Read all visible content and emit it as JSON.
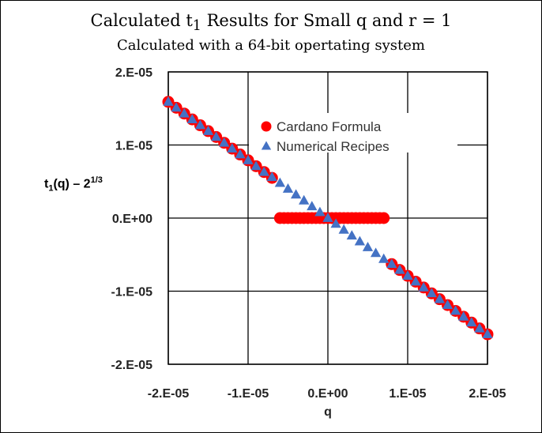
{
  "chart_data": {
    "type": "scatter",
    "title_main": "Calculated t",
    "title_sub_index": "1",
    "title_rest": " Results for Small q and r = 1",
    "subtitle": "Calculated with a 64-bit opertating system",
    "xlabel": "q",
    "ylabel_base": "t",
    "ylabel_index": "1",
    "ylabel_mid": "(q) – 2",
    "ylabel_exp": "1/3",
    "xlim": [
      -2e-05,
      2e-05
    ],
    "ylim": [
      -2e-05,
      2e-05
    ],
    "x_ticks": [
      -2e-05,
      -1e-05,
      0,
      1e-05,
      2e-05
    ],
    "x_tick_labels": [
      "-2.E-05",
      "-1.E-05",
      "0.E+00",
      "1.E-05",
      "2.E-05"
    ],
    "y_ticks": [
      2e-05,
      1e-05,
      0,
      -1e-05,
      -2e-05
    ],
    "y_tick_labels": [
      "2.E-05",
      "1.E-05",
      "0.E+00",
      "-1.E-05",
      "-2.E-05"
    ],
    "grid": true,
    "legend_position": "top-right",
    "series": [
      {
        "name": "Cardano Formula",
        "marker": "circle",
        "color": "#ff0000",
        "x": [
          -2e-05,
          -1.9e-05,
          -1.8e-05,
          -1.7e-05,
          -1.6e-05,
          -1.5e-05,
          -1.4e-05,
          -1.3e-05,
          -1.2e-05,
          -1.1e-05,
          -1e-05,
          -9e-06,
          -8e-06,
          -7e-06,
          -6e-06,
          -5.5e-06,
          -5e-06,
          -4.5e-06,
          -4e-06,
          -3.5e-06,
          -3e-06,
          -2.5e-06,
          -2e-06,
          -1.5e-06,
          -1e-06,
          -5e-07,
          0.0,
          5e-07,
          1e-06,
          1.5e-06,
          2e-06,
          2.5e-06,
          3e-06,
          3.5e-06,
          4e-06,
          4.5e-06,
          5e-06,
          5.5e-06,
          6e-06,
          6.5e-06,
          7e-06,
          8e-06,
          9e-06,
          1e-05,
          1.1e-05,
          1.2e-05,
          1.3e-05,
          1.4e-05,
          1.5e-05,
          1.6e-05,
          1.7e-05,
          1.8e-05,
          1.9e-05,
          2e-05
        ],
        "y": [
          1.59e-05,
          1.51e-05,
          1.43e-05,
          1.35e-05,
          1.27e-05,
          1.19e-05,
          1.11e-05,
          1.03e-05,
          9.5e-06,
          8.7e-06,
          7.9e-06,
          7.1e-06,
          6.3e-06,
          5.5e-06,
          0.0,
          0.0,
          0.0,
          0.0,
          0.0,
          0.0,
          0.0,
          0.0,
          0.0,
          0.0,
          0.0,
          0.0,
          0.0,
          0.0,
          0.0,
          0.0,
          0.0,
          0.0,
          0.0,
          0.0,
          0.0,
          0.0,
          0.0,
          0.0,
          0.0,
          0.0,
          0.0,
          -6.3e-06,
          -7.1e-06,
          -7.9e-06,
          -8.7e-06,
          -9.5e-06,
          -1.03e-05,
          -1.11e-05,
          -1.19e-05,
          -1.27e-05,
          -1.35e-05,
          -1.43e-05,
          -1.51e-05,
          -1.59e-05
        ]
      },
      {
        "name": "Numerical Recipes",
        "marker": "triangle",
        "color": "#4472c4",
        "x": [
          -2e-05,
          -1.9e-05,
          -1.8e-05,
          -1.7e-05,
          -1.6e-05,
          -1.5e-05,
          -1.4e-05,
          -1.3e-05,
          -1.2e-05,
          -1.1e-05,
          -1e-05,
          -9e-06,
          -8e-06,
          -7e-06,
          -6e-06,
          -5e-06,
          -4e-06,
          -3e-06,
          -2e-06,
          -1e-06,
          0.0,
          1e-06,
          2e-06,
          3e-06,
          4e-06,
          5e-06,
          6e-06,
          7e-06,
          8e-06,
          9e-06,
          1e-05,
          1.1e-05,
          1.2e-05,
          1.3e-05,
          1.4e-05,
          1.5e-05,
          1.6e-05,
          1.7e-05,
          1.8e-05,
          1.9e-05,
          2e-05
        ],
        "y": [
          1.59e-05,
          1.51e-05,
          1.43e-05,
          1.35e-05,
          1.27e-05,
          1.19e-05,
          1.11e-05,
          1.03e-05,
          9.5e-06,
          8.7e-06,
          7.9e-06,
          7.1e-06,
          6.3e-06,
          5.6e-06,
          4.8e-06,
          4e-06,
          3.2e-06,
          2.4e-06,
          1.6e-06,
          8e-07,
          0.0,
          -8e-07,
          -1.6e-06,
          -2.4e-06,
          -3.2e-06,
          -4e-06,
          -4.8e-06,
          -5.6e-06,
          -6.3e-06,
          -7.1e-06,
          -7.9e-06,
          -8.7e-06,
          -9.5e-06,
          -1.03e-05,
          -1.11e-05,
          -1.19e-05,
          -1.27e-05,
          -1.35e-05,
          -1.43e-05,
          -1.51e-05,
          -1.59e-05
        ]
      }
    ]
  }
}
